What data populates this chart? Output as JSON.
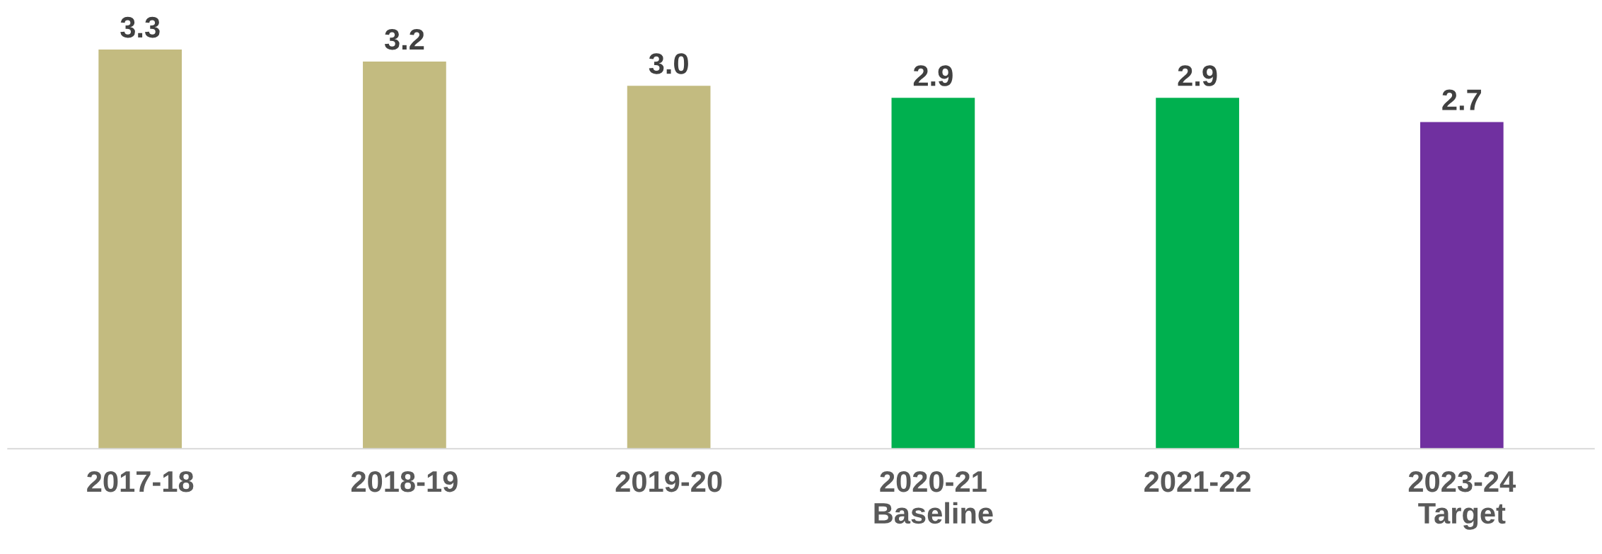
{
  "chart_data": {
    "type": "bar",
    "categories": [
      "2017-18",
      "2018-19",
      "2019-20",
      "2020-21\nBaseline",
      "2021-22",
      "2023-24\nTarget"
    ],
    "values": [
      3.3,
      3.2,
      3.0,
      2.9,
      2.9,
      2.7
    ],
    "value_labels": [
      "3.3",
      "3.2",
      "3.0",
      "2.9",
      "2.9",
      "2.7"
    ],
    "colors": [
      "#c3bb80",
      "#c3bb80",
      "#c3bb80",
      "#00b04f",
      "#00b04f",
      "#7030a0"
    ],
    "grid": false,
    "legend": false,
    "tick_labels": "x"
  }
}
